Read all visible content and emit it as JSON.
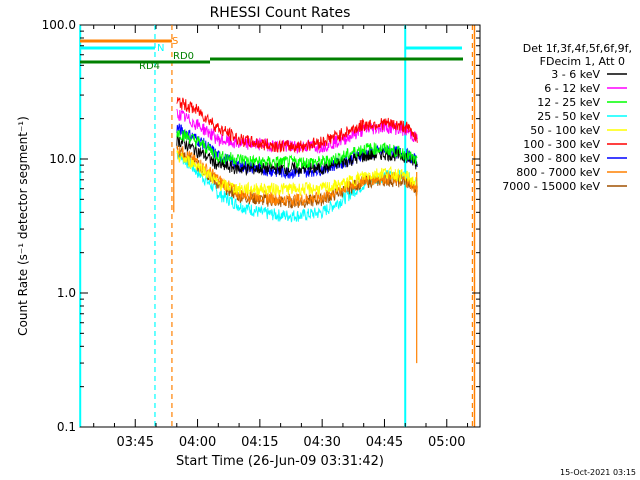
{
  "chart_data": {
    "type": "line",
    "title": "RHESSI Count Rates",
    "xlabel": "Start Time (26-Jun-09 03:31:42)",
    "ylabel": "Count Rate (s⁻¹ detector segment⁻¹)",
    "y_scale": "log",
    "ylim": [
      0.1,
      100.0
    ],
    "y_ticks": [
      "0.1",
      "1.0",
      "10.0",
      "100.0"
    ],
    "xlim": [
      "03:31:42",
      "05:08:00"
    ],
    "x_ticks": [
      "03:45",
      "04:00",
      "04:15",
      "04:30",
      "04:45",
      "05:00"
    ],
    "timestamp": "15-Oct-2021 03:15",
    "legend": {
      "placement": "right",
      "header": [
        "Det 1f,3f,4f,5f,6f,9f,",
        "FDecim 1, Att 0"
      ]
    },
    "x": [
      "03:55",
      "04:00",
      "04:05",
      "04:10",
      "04:15",
      "04:20",
      "04:25",
      "04:30",
      "04:35",
      "04:40",
      "04:45",
      "04:50",
      "04:53"
    ],
    "series": [
      {
        "name": "3 - 6 keV",
        "color": "#000000",
        "values": [
          14.0,
          11.5,
          9.0,
          8.5,
          8.5,
          8.5,
          8.5,
          8.5,
          9.5,
          10.5,
          11.0,
          10.5,
          9.0
        ]
      },
      {
        "name": "6 - 12 keV",
        "color": "#ff00ff",
        "values": [
          22.0,
          18.0,
          14.0,
          13.0,
          13.0,
          12.5,
          12.5,
          12.5,
          14.0,
          16.5,
          17.5,
          16.5,
          14.0
        ]
      },
      {
        "name": "12 - 25 keV",
        "color": "#00ff00",
        "values": [
          16.0,
          13.5,
          10.5,
          10.0,
          9.5,
          9.5,
          9.5,
          9.5,
          10.5,
          12.0,
          12.0,
          11.0,
          9.5
        ]
      },
      {
        "name": "25 - 50 keV",
        "color": "#00ffff",
        "values": [
          11.0,
          8.0,
          5.5,
          4.5,
          4.0,
          3.8,
          3.8,
          4.0,
          5.0,
          6.5,
          7.5,
          7.5,
          6.5
        ]
      },
      {
        "name": "50 - 100 keV",
        "color": "#ffff00",
        "values": [
          10.5,
          9.0,
          6.5,
          6.0,
          6.0,
          6.0,
          6.0,
          6.0,
          6.5,
          7.5,
          8.0,
          7.5,
          6.5
        ]
      },
      {
        "name": "100 - 300 keV",
        "color": "#ff0000",
        "values": [
          27.0,
          23.0,
          17.0,
          14.0,
          13.0,
          12.5,
          12.5,
          13.5,
          15.5,
          18.0,
          18.5,
          17.5,
          14.5
        ]
      },
      {
        "name": "300 - 800 keV",
        "color": "#0000ff",
        "values": [
          17.0,
          14.0,
          10.5,
          9.0,
          8.5,
          8.0,
          8.0,
          8.5,
          9.5,
          11.0,
          11.5,
          11.0,
          9.5
        ]
      },
      {
        "name": "800 - 7000 keV",
        "color": "#ff8000",
        "values": [
          12.0,
          9.5,
          7.0,
          5.5,
          5.3,
          5.0,
          5.0,
          5.2,
          6.0,
          7.0,
          7.3,
          7.0,
          6.0
        ]
      },
      {
        "name": "7000 - 15000 keV",
        "color": "#a05000",
        "values": [
          11.5,
          9.0,
          6.5,
          5.3,
          5.0,
          4.8,
          4.8,
          5.0,
          5.8,
          6.8,
          7.0,
          6.8,
          5.8
        ]
      }
    ],
    "annotations": [
      {
        "label": "S",
        "color": "#ff8000"
      },
      {
        "label": "N",
        "color": "#00ffff"
      },
      {
        "label": "RD0",
        "color": "#008000"
      },
      {
        "label": "RD4",
        "color": "#008000"
      }
    ]
  }
}
